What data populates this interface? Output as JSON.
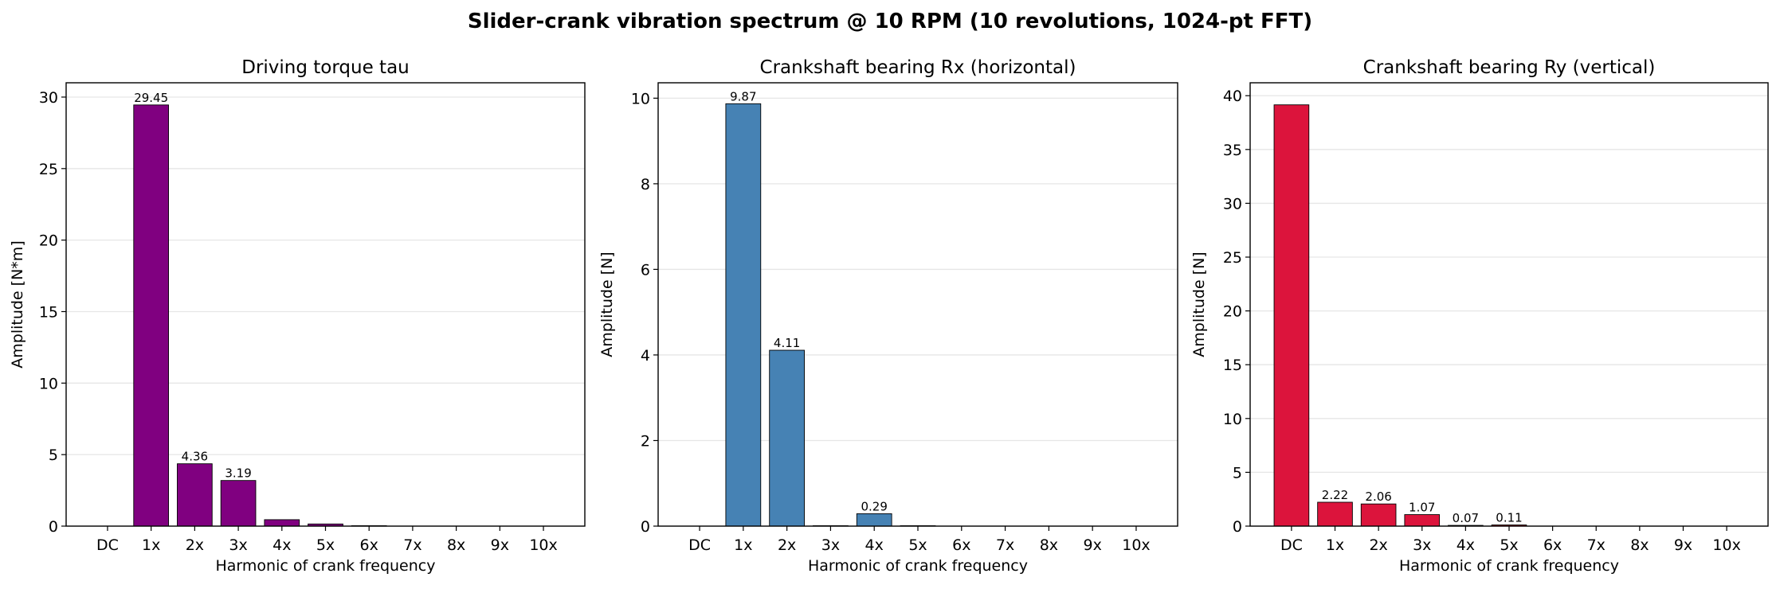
{
  "figure": {
    "suptitle": "Slider-crank vibration spectrum @ 10 RPM (10 revolutions, 1024-pt FFT)"
  },
  "chart_data": [
    {
      "type": "bar",
      "title": "Driving torque tau",
      "xlabel": "Harmonic of crank frequency",
      "ylabel": "Amplitude [N*m]",
      "categories": [
        "DC",
        "1x",
        "2x",
        "3x",
        "4x",
        "5x",
        "6x",
        "7x",
        "8x",
        "9x",
        "10x"
      ],
      "values": [
        0,
        29.45,
        4.36,
        3.19,
        0.45,
        0.15,
        0.03,
        0,
        0,
        0,
        0
      ],
      "data_labels": [
        "",
        "29.45",
        "4.36",
        "3.19",
        "",
        "",
        "",
        "",
        "",
        "",
        ""
      ],
      "ylim": [
        0,
        31
      ],
      "yticks": [
        0,
        5,
        10,
        15,
        20,
        25,
        30
      ],
      "color": "#800080",
      "grid": "horizontal"
    },
    {
      "type": "bar",
      "title": "Crankshaft bearing Rx (horizontal)",
      "xlabel": "Harmonic of crank frequency",
      "ylabel": "Amplitude [N]",
      "categories": [
        "DC",
        "1x",
        "2x",
        "3x",
        "4x",
        "5x",
        "6x",
        "7x",
        "8x",
        "9x",
        "10x"
      ],
      "values": [
        0,
        9.87,
        4.11,
        0.01,
        0.29,
        0.01,
        0,
        0,
        0,
        0,
        0
      ],
      "data_labels": [
        "",
        "9.87",
        "4.11",
        "",
        "0.29",
        "",
        "",
        "",
        "",
        "",
        ""
      ],
      "ylim": [
        0,
        10.36
      ],
      "yticks": [
        0,
        2,
        4,
        6,
        8,
        10
      ],
      "color": "#4682B4",
      "grid": "horizontal"
    },
    {
      "type": "bar",
      "title": "Crankshaft bearing Ry (vertical)",
      "xlabel": "Harmonic of crank frequency",
      "ylabel": "Amplitude [N]",
      "categories": [
        "DC",
        "1x",
        "2x",
        "3x",
        "4x",
        "5x",
        "6x",
        "7x",
        "8x",
        "9x",
        "10x"
      ],
      "values": [
        39.15,
        2.22,
        2.06,
        1.07,
        0.07,
        0.11,
        0,
        0,
        0,
        0,
        0
      ],
      "data_labels": [
        "",
        "2.22",
        "2.06",
        "1.07",
        "0.07",
        "0.11",
        "",
        "",
        "",
        "",
        ""
      ],
      "ylim": [
        0,
        41.2
      ],
      "yticks": [
        0,
        5,
        10,
        15,
        20,
        25,
        30,
        35,
        40
      ],
      "color": "#DC143C",
      "grid": "horizontal"
    }
  ]
}
